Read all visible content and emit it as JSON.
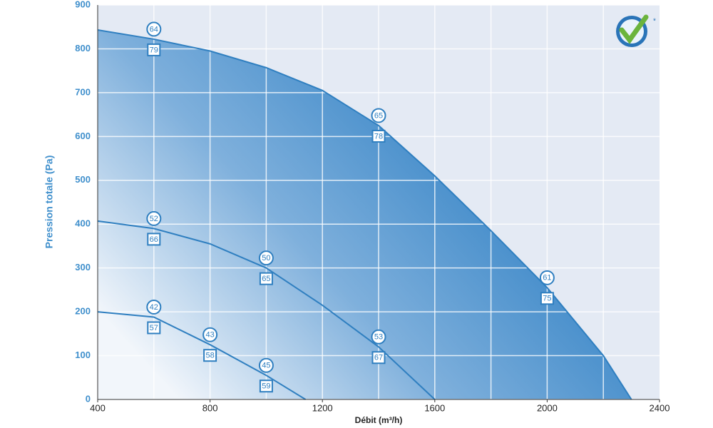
{
  "chart_data": {
    "type": "area",
    "ylabel": "Pression totale (Pa)",
    "xlabel": "Débit (m³/h)",
    "xlim": [
      400,
      2400
    ],
    "ylim": [
      0,
      900
    ],
    "xticks": [
      400,
      800,
      1200,
      1600,
      2000,
      2400
    ],
    "xgrid": [
      600,
      800,
      1000,
      1200,
      1400,
      1600,
      1800,
      2000,
      2200
    ],
    "yticks": [
      0,
      100,
      200,
      300,
      400,
      500,
      600,
      700,
      800,
      900
    ],
    "grid": true,
    "series": [
      {
        "color": "#2f7fc0",
        "x": [
          400,
          600,
          800,
          1000,
          1200,
          1400,
          1600,
          1800,
          2000,
          2200,
          2300
        ],
        "values": [
          843,
          822,
          795,
          757,
          705,
          625,
          510,
          385,
          255,
          100,
          0
        ],
        "points": [
          {
            "x": 600,
            "circle": 64,
            "square": 79
          },
          {
            "x": 1400,
            "circle": 65,
            "square": 78
          },
          {
            "x": 2000,
            "circle": 61,
            "square": 75
          }
        ]
      },
      {
        "color": "#2f7fc0",
        "x": [
          400,
          600,
          800,
          1000,
          1200,
          1400,
          1600
        ],
        "values": [
          407,
          390,
          355,
          300,
          215,
          120,
          0
        ],
        "points": [
          {
            "x": 600,
            "circle": 52,
            "square": 66
          },
          {
            "x": 1000,
            "circle": 50,
            "square": 65
          },
          {
            "x": 1400,
            "circle": 53,
            "square": 67
          }
        ]
      },
      {
        "color": "#2f7fc0",
        "x": [
          400,
          600,
          800,
          1000,
          1140
        ],
        "values": [
          200,
          188,
          125,
          55,
          0
        ],
        "points": [
          {
            "x": 600,
            "circle": 42,
            "square": 57
          },
          {
            "x": 800,
            "circle": 43,
            "square": 58
          },
          {
            "x": 1000,
            "circle": 45,
            "square": 59
          }
        ]
      }
    ]
  }
}
